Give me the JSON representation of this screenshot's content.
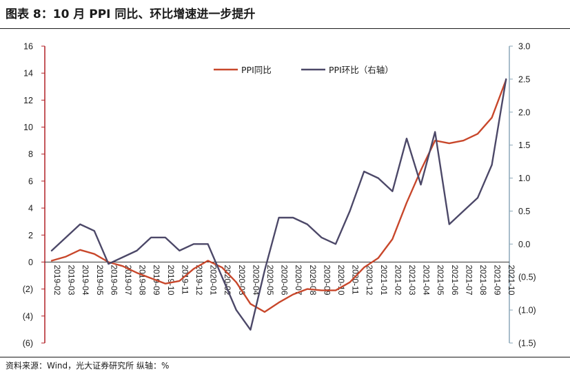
{
  "title": "图表 8：10 月 PPI 同比、环比增速进一步提升",
  "source": "资料来源：Wind，光大证券研究所   纵轴：%",
  "colors": {
    "left_axis": "#b01e23",
    "right_axis": "#8ba7b8",
    "yoy": "#c8472b",
    "mom": "#4c4868"
  },
  "chart_data": {
    "type": "line",
    "categories": [
      "2019-02",
      "2019-03",
      "2019-04",
      "2019-05",
      "2019-06",
      "2019-07",
      "2019-08",
      "2019-09",
      "2019-10",
      "2019-11",
      "2019-12",
      "2020-01",
      "2020-02",
      "2020-03",
      "2020-04",
      "2020-05",
      "2020-06",
      "2020-07",
      "2020-08",
      "2020-09",
      "2020-10",
      "2020-11",
      "2020-12",
      "2021-01",
      "2021-02",
      "2021-03",
      "2021-04",
      "2021-05",
      "2021-06",
      "2021-07",
      "2021-08",
      "2021-09",
      "2021-10"
    ],
    "series": [
      {
        "name": "PPI同比",
        "axis": "left",
        "color": "#c8472b",
        "values": [
          0.1,
          0.4,
          0.9,
          0.6,
          0.0,
          -0.3,
          -0.8,
          -1.2,
          -1.6,
          -1.4,
          -0.5,
          0.1,
          -0.4,
          -1.5,
          -3.1,
          -3.7,
          -3.0,
          -2.4,
          -2.0,
          -2.1,
          -2.1,
          -1.5,
          -0.4,
          0.3,
          1.7,
          4.4,
          6.8,
          9.0,
          8.8,
          9.0,
          9.5,
          10.7,
          13.5
        ]
      },
      {
        "name": "PPI环比（右轴）",
        "axis": "right",
        "color": "#4c4868",
        "values": [
          -0.1,
          0.1,
          0.3,
          0.2,
          -0.3,
          -0.2,
          -0.1,
          0.1,
          0.1,
          -0.1,
          0.0,
          0.0,
          -0.5,
          -1.0,
          -1.3,
          -0.4,
          0.4,
          0.4,
          0.3,
          0.1,
          0.0,
          0.5,
          1.1,
          1.0,
          0.8,
          1.6,
          0.9,
          1.7,
          0.3,
          0.5,
          0.7,
          1.2,
          2.5
        ]
      }
    ],
    "left_axis": {
      "ylim": [
        -6,
        16
      ],
      "ticks": [
        "(6)",
        "(4)",
        "(2)",
        "0",
        "2",
        "4",
        "6",
        "8",
        "10",
        "12",
        "14",
        "16"
      ]
    },
    "right_axis": {
      "ylim": [
        -1.5,
        3.0
      ],
      "ticks": [
        "(1.5)",
        "(1.0)",
        "(0.5)",
        "0.0",
        "0.5",
        "1.0",
        "1.5",
        "2.0",
        "2.5",
        "3.0"
      ]
    },
    "grid": false,
    "legend_position": "top"
  }
}
